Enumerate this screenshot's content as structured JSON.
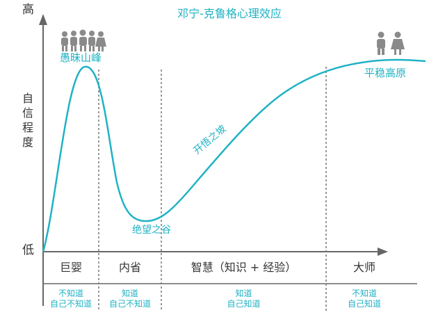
{
  "title": "邓宁-克鲁格心理效应",
  "y_axis": {
    "high": "高",
    "low": "低",
    "label": "自信程度"
  },
  "curve_labels": {
    "peak": "愚昧山峰",
    "valley": "绝望之谷",
    "slope": "开悟之坡",
    "plateau": "平稳高原"
  },
  "stages": [
    {
      "name": "巨婴",
      "note_line1": "不知道",
      "note_line2": "自己不知道"
    },
    {
      "name": "内省",
      "note_line1": "知道",
      "note_line2": "自己不知道"
    },
    {
      "name": "智慧（知识 + 经验）",
      "note_line1": "知道",
      "note_line2": "自己知道"
    },
    {
      "name": "大师",
      "note_line1": "不知道",
      "note_line2": "自己知道"
    }
  ],
  "icons": {
    "peak_people": "crowd-of-people-icon",
    "plateau_people": "pair-of-people-icon"
  },
  "colors": {
    "curve": "#1fb2c4",
    "axis": "#666666",
    "text": "#333333",
    "icons": "#8a8a8a"
  }
}
